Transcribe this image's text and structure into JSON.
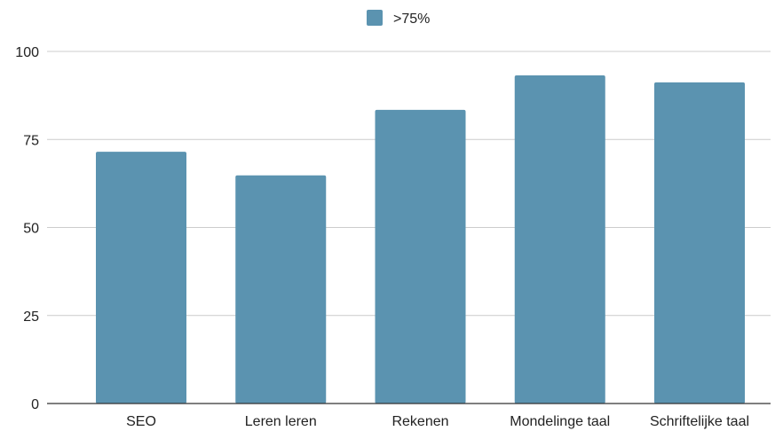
{
  "chart_data": {
    "type": "bar",
    "categories": [
      "SEO",
      "Leren leren",
      "Rekenen",
      "Mondelinge taal",
      "Schriftelijke taal"
    ],
    "series": [
      {
        "name": ">75%",
        "color": "#5b93b0",
        "values": [
          71.5,
          64.8,
          83.4,
          93.2,
          91.2
        ]
      }
    ],
    "yticks": [
      "0",
      "25",
      "50",
      "75",
      "100"
    ],
    "ylim": [
      0,
      100
    ],
    "grid": true,
    "legend_position": "top-center"
  }
}
